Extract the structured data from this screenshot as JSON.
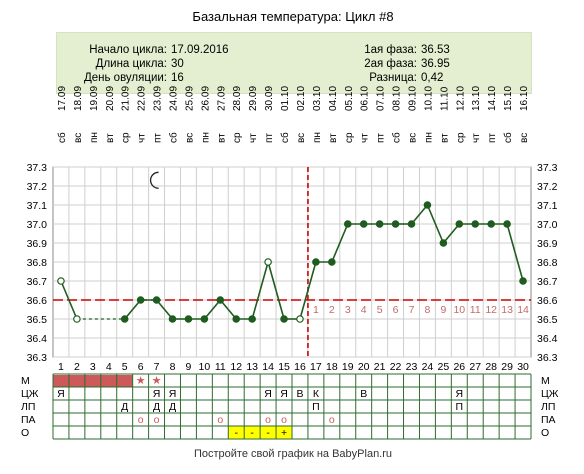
{
  "title": "Базальная температура: Цикл #8",
  "info": {
    "start_label": "Начало цикла:",
    "start_value": "17.09.2016",
    "length_label": "Длина цикла:",
    "length_value": "30",
    "ovulation_label": "День овуляции:",
    "ovulation_value": "16",
    "phase1_label": "1ая фаза:",
    "phase1_value": "36.53",
    "phase2_label": "2ая фаза:",
    "phase2_value": "36.95",
    "diff_label": "Разница:",
    "diff_value": "0,42"
  },
  "footer": "Постройте свой график на BabyPlan.ru",
  "chart_data": {
    "type": "line",
    "title": "Базальная температура: Цикл #8",
    "x": [
      1,
      2,
      3,
      4,
      5,
      6,
      7,
      8,
      9,
      10,
      11,
      12,
      13,
      14,
      15,
      16,
      17,
      18,
      19,
      20,
      21,
      22,
      23,
      24,
      25,
      26,
      27,
      28,
      29,
      30
    ],
    "dates": [
      "17.09",
      "18.09",
      "19.09",
      "20.09",
      "21.09",
      "22.09",
      "23.09",
      "24.09",
      "25.09",
      "26.09",
      "27.09",
      "28.09",
      "29.09",
      "30.09",
      "01.10",
      "02.10",
      "03.10",
      "04.10",
      "05.10",
      "06.10",
      "07.10",
      "08.10",
      "09.10",
      "10.10",
      "11.10",
      "12.10",
      "13.10",
      "14.10",
      "15.10",
      "16.10"
    ],
    "weekdays": [
      "сб",
      "вс",
      "пн",
      "вт",
      "ср",
      "чт",
      "пт",
      "сб",
      "вс",
      "пн",
      "вт",
      "ср",
      "чт",
      "пт",
      "сб",
      "вс",
      "пн",
      "вт",
      "ср",
      "чт",
      "пт",
      "сб",
      "вс",
      "пн",
      "вт",
      "ср",
      "чт",
      "пт",
      "сб",
      "вс"
    ],
    "series": [
      {
        "values": [
          36.7,
          36.5,
          null,
          null,
          36.5,
          36.6,
          36.6,
          36.5,
          36.5,
          36.5,
          36.6,
          36.5,
          36.5,
          36.8,
          36.5,
          36.5,
          36.8,
          36.8,
          37.0,
          37.0,
          37.0,
          37.0,
          37.0,
          37.1,
          36.9,
          37.0,
          37.0,
          37.0,
          37.0,
          36.7
        ]
      }
    ],
    "open_points": [
      1,
      2,
      14,
      16
    ],
    "dashed_segment": [
      2,
      5
    ],
    "ylim": [
      36.3,
      37.3
    ],
    "yticks": [
      "36.3",
      "36.4",
      "36.5",
      "36.6",
      "36.7",
      "36.8",
      "36.9",
      "37.0",
      "37.1",
      "37.2",
      "37.3"
    ],
    "coverline": 36.6,
    "ovulation_day": 16,
    "after_ovulation_labels": [
      "1",
      "2",
      "3",
      "4",
      "5",
      "6",
      "7",
      "8",
      "9",
      "10",
      "11",
      "12",
      "13",
      "14"
    ],
    "moon_day": 7,
    "grid": true,
    "colors": {
      "line": "#1f5c1f",
      "coverline": "#cc0000",
      "ovulation": "#cc0000",
      "menses": "#cc5a5a",
      "count": "#c46a6a",
      "yellow": "#ffff00"
    }
  },
  "table": {
    "row_labels": [
      "М",
      "ЦЖ",
      "ЛП",
      "ПА",
      "О"
    ],
    "menses_days": [
      1,
      2,
      3,
      4,
      5
    ],
    "menses_stars": [
      6,
      7
    ],
    "cj": [
      [
        1,
        "Я"
      ],
      [
        7,
        "Я"
      ],
      [
        8,
        "Я"
      ],
      [
        14,
        "Я"
      ],
      [
        15,
        "Я"
      ],
      [
        16,
        "В"
      ],
      [
        17,
        "К"
      ],
      [
        20,
        "В"
      ],
      [
        26,
        "Я"
      ]
    ],
    "lp": [
      [
        5,
        "Д"
      ],
      [
        7,
        "Д"
      ],
      [
        8,
        "Д"
      ],
      [
        17,
        "П"
      ],
      [
        26,
        "П"
      ]
    ],
    "pa": [
      [
        6,
        "о"
      ],
      [
        7,
        "о"
      ],
      [
        11,
        "о"
      ],
      [
        14,
        "о"
      ],
      [
        15,
        "о"
      ],
      [
        18,
        "о"
      ]
    ],
    "o": [
      [
        12,
        "-"
      ],
      [
        13,
        "-"
      ],
      [
        14,
        "-"
      ],
      [
        15,
        "+"
      ]
    ]
  }
}
